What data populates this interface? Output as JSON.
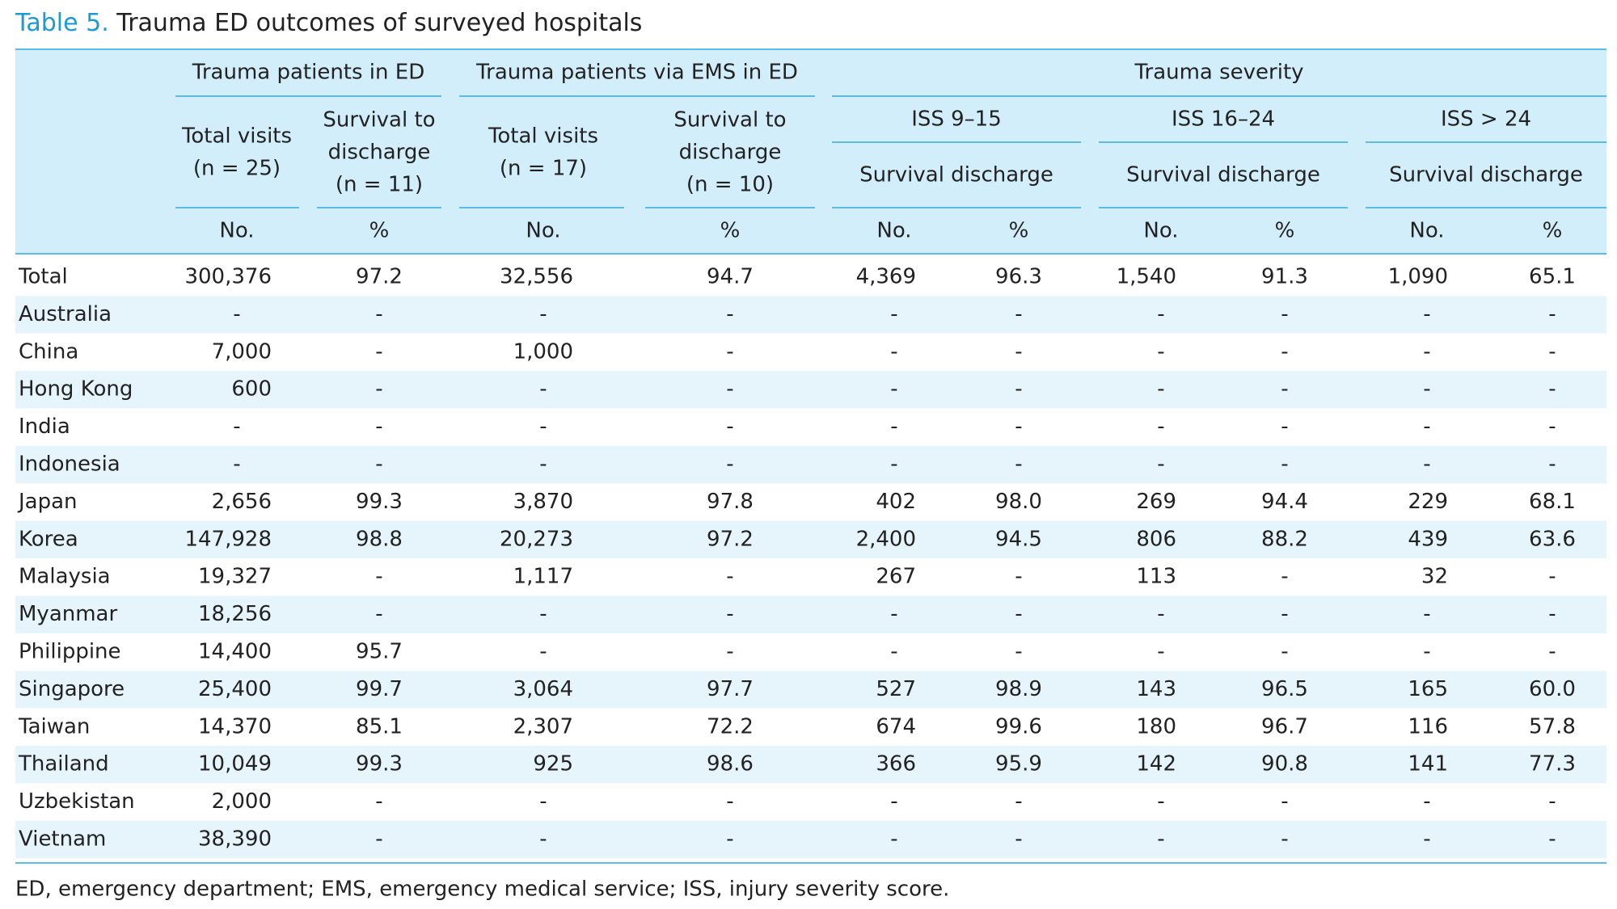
{
  "title": {
    "label": "Table 5.",
    "text": "Trauma ED outcomes of surveyed hospitals"
  },
  "table": {
    "groups": [
      "Trauma patients in ED",
      "Trauma patients via EMS in ED",
      "Trauma severity"
    ],
    "subheaders": [
      [
        "Total visits",
        "(n = 25)"
      ],
      [
        "Survival to",
        "discharge",
        "(n = 11)"
      ],
      [
        "Total visits",
        "(n = 17)"
      ],
      [
        "Survival to",
        "discharge",
        "(n = 10)"
      ]
    ],
    "iss_groups": [
      "ISS 9–15",
      "ISS 16–24",
      "ISS > 24"
    ],
    "iss_sub": [
      "Survival discharge",
      "Survival discharge",
      "Survival discharge"
    ],
    "units": [
      "No.",
      "%",
      "No.",
      "%",
      "No.",
      "%",
      "No.",
      "%",
      "No.",
      "%"
    ],
    "rows": [
      [
        "Total",
        "300,376",
        "97.2",
        "32,556",
        "94.7",
        "4,369",
        "96.3",
        "1,540",
        "91.3",
        "1,090",
        "65.1"
      ],
      [
        "Australia",
        "-",
        "-",
        "-",
        "-",
        "-",
        "-",
        "-",
        "-",
        "-",
        "-"
      ],
      [
        "China",
        "7,000",
        "-",
        "1,000",
        "-",
        "-",
        "-",
        "-",
        "-",
        "-",
        "-"
      ],
      [
        "Hong Kong",
        "600",
        "-",
        "-",
        "-",
        "-",
        "-",
        "-",
        "-",
        "-",
        "-"
      ],
      [
        "India",
        "-",
        "-",
        "-",
        "-",
        "-",
        "-",
        "-",
        "-",
        "-",
        "-"
      ],
      [
        "Indonesia",
        "-",
        "-",
        "-",
        "-",
        "-",
        "-",
        "-",
        "-",
        "-",
        "-"
      ],
      [
        "Japan",
        "2,656",
        "99.3",
        "3,870",
        "97.8",
        "402",
        "98.0",
        "269",
        "94.4",
        "229",
        "68.1"
      ],
      [
        "Korea",
        "147,928",
        "98.8",
        "20,273",
        "97.2",
        "2,400",
        "94.5",
        "806",
        "88.2",
        "439",
        "63.6"
      ],
      [
        "Malaysia",
        "19,327",
        "-",
        "1,117",
        "-",
        "267",
        "-",
        "113",
        "-",
        "32",
        "-"
      ],
      [
        "Myanmar",
        "18,256",
        "-",
        "-",
        "-",
        "-",
        "-",
        "-",
        "-",
        "-",
        "-"
      ],
      [
        "Philippine",
        "14,400",
        "95.7",
        "-",
        "-",
        "-",
        "-",
        "-",
        "-",
        "-",
        "-"
      ],
      [
        "Singapore",
        "25,400",
        "99.7",
        "3,064",
        "97.7",
        "527",
        "98.9",
        "143",
        "96.5",
        "165",
        "60.0"
      ],
      [
        "Taiwan",
        "14,370",
        "85.1",
        "2,307",
        "72.2",
        "674",
        "99.6",
        "180",
        "96.7",
        "116",
        "57.8"
      ],
      [
        "Thailand",
        "10,049",
        "99.3",
        "925",
        "98.6",
        "366",
        "95.9",
        "142",
        "90.8",
        "141",
        "77.3"
      ],
      [
        "Uzbekistan",
        "2,000",
        "-",
        "-",
        "-",
        "-",
        "-",
        "-",
        "-",
        "-",
        "-"
      ],
      [
        "Vietnam",
        "38,390",
        "-",
        "-",
        "-",
        "-",
        "-",
        "-",
        "-",
        "-",
        "-"
      ]
    ]
  },
  "footnote": "ED, emergency department; EMS, emergency medical service; ISS, injury severity score."
}
